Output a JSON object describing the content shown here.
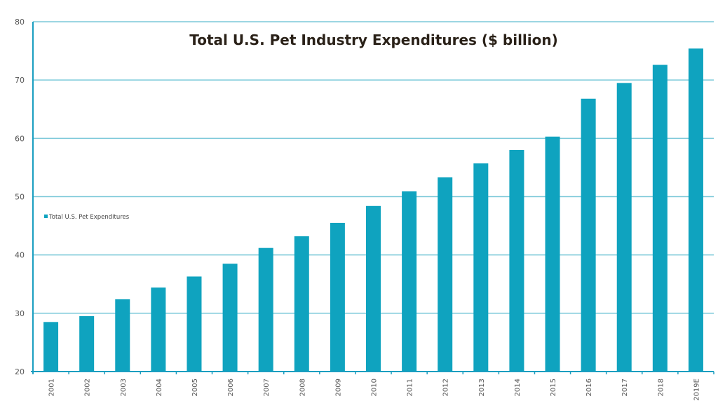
{
  "chart_data": {
    "type": "bar",
    "title": "Total U.S. Pet Industry Expenditures ($ billion)",
    "xlabel": "",
    "ylabel": "",
    "ylim": [
      20,
      80
    ],
    "yticks": [
      20,
      30,
      40,
      50,
      60,
      70,
      80
    ],
    "grid": true,
    "legend_position": "left-middle",
    "categories": [
      "2001",
      "2002",
      "2003",
      "2004",
      "2005",
      "2006",
      "2007",
      "2008",
      "2009",
      "2010",
      "2011",
      "2012",
      "2013",
      "2014",
      "2015",
      "2016",
      "2017",
      "2018",
      "2019E"
    ],
    "series": [
      {
        "name": "Total U.S. Pet Expenditures",
        "color": "#0fa3bf",
        "values": [
          28.5,
          29.5,
          32.4,
          34.4,
          36.3,
          38.5,
          41.2,
          43.2,
          45.5,
          48.4,
          50.9,
          53.3,
          55.7,
          58.0,
          60.3,
          66.8,
          69.5,
          72.6,
          75.4
        ]
      }
    ]
  },
  "colors": {
    "bar": "#0fa3bf",
    "axis": "#1a9ec0",
    "grid": "#7cc9d9",
    "title": "#2a2118"
  }
}
